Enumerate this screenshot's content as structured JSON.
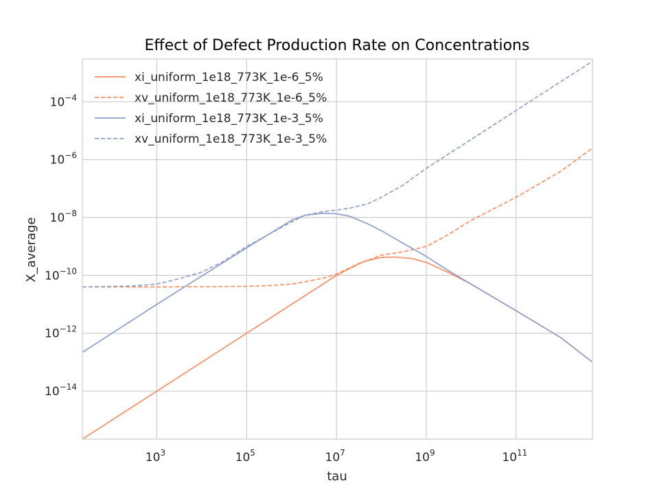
{
  "chart_data": {
    "type": "line",
    "title": "Effect of Defect Production Rate on Concentrations",
    "xlabel": "tau",
    "ylabel": "X_average",
    "x_scale": "log",
    "y_scale": "log",
    "xlim": [
      22,
      5000000000000
    ],
    "ylim": [
      2.2e-16,
      0.003
    ],
    "xticks": [
      {
        "base": "10",
        "exp": "3",
        "value": 1000
      },
      {
        "base": "10",
        "exp": "5",
        "value": 100000
      },
      {
        "base": "10",
        "exp": "7",
        "value": 10000000
      },
      {
        "base": "10",
        "exp": "9",
        "value": 1000000000
      },
      {
        "base": "10",
        "exp": "11",
        "value": 100000000000
      }
    ],
    "yticks": [
      {
        "base": "10",
        "exp": "−14",
        "value": 1e-14
      },
      {
        "base": "10",
        "exp": "−12",
        "value": 1e-12
      },
      {
        "base": "10",
        "exp": "−10",
        "value": 1e-10
      },
      {
        "base": "10",
        "exp": "−8",
        "value": 1e-08
      },
      {
        "base": "10",
        "exp": "−6",
        "value": 1e-06
      },
      {
        "base": "10",
        "exp": "−4",
        "value": 0.0001
      }
    ],
    "grid": true,
    "legend_position": "upper-left",
    "series": [
      {
        "name": "xi_uniform_1e18_773K_1e-6_5%",
        "color": "#fc8d62",
        "dash": "solid",
        "points": [
          [
            22,
            2.2e-16
          ],
          [
            1000,
            1e-14
          ],
          [
            100000,
            1e-12
          ],
          [
            10000000,
            1e-10
          ],
          [
            40000000,
            3e-10
          ],
          [
            100000000,
            4.2e-10
          ],
          [
            200000000,
            4.3e-10
          ],
          [
            500000000,
            3.8e-10
          ],
          [
            1000000000,
            2.8e-10
          ],
          [
            3000000000,
            1.3e-10
          ],
          [
            10000000000,
            5e-11
          ],
          [
            100000000000,
            6e-12
          ],
          [
            1000000000000,
            7e-13
          ],
          [
            5000000000000,
            1e-13
          ]
        ]
      },
      {
        "name": "xv_uniform_1e18_773K_1e-6_5%",
        "color": "#fc8d62",
        "dash": "dashed",
        "points": [
          [
            22,
            4e-11
          ],
          [
            1000,
            4e-11
          ],
          [
            100000,
            4.2e-11
          ],
          [
            300000,
            4.4e-11
          ],
          [
            1000000,
            5e-11
          ],
          [
            2000000,
            6e-11
          ],
          [
            5000000,
            8e-11
          ],
          [
            10000000,
            1.1e-10
          ],
          [
            30000000,
            2.5e-10
          ],
          [
            100000000,
            5e-10
          ],
          [
            300000000,
            6.5e-10
          ],
          [
            1000000000,
            1e-09
          ],
          [
            3000000000,
            2.5e-09
          ],
          [
            10000000000,
            8e-09
          ],
          [
            100000000000,
            5e-08
          ],
          [
            1000000000000,
            4e-07
          ],
          [
            5000000000000,
            2.5e-06
          ]
        ]
      },
      {
        "name": "xi_uniform_1e18_773K_1e-3_5%",
        "color": "#8da0cb",
        "dash": "solid",
        "points": [
          [
            22,
            2.2e-13
          ],
          [
            1000,
            1e-11
          ],
          [
            100000,
            9e-10
          ],
          [
            1000000,
            8e-09
          ],
          [
            2000000,
            1.2e-08
          ],
          [
            5000000,
            1.4e-08
          ],
          [
            10000000,
            1.35e-08
          ],
          [
            20000000,
            1.1e-08
          ],
          [
            50000000,
            6e-09
          ],
          [
            100000000,
            3.5e-09
          ],
          [
            300000000,
            1.3e-09
          ],
          [
            1000000000,
            4.5e-10
          ],
          [
            3000000000,
            1.5e-10
          ],
          [
            10000000000,
            5e-11
          ],
          [
            100000000000,
            6e-12
          ],
          [
            1000000000000,
            7e-13
          ],
          [
            5000000000000,
            1e-13
          ]
        ]
      },
      {
        "name": "xv_uniform_1e18_773K_1e-3_5%",
        "color": "#8da0cb",
        "dash": "dashed",
        "points": [
          [
            22,
            4e-11
          ],
          [
            300,
            4.3e-11
          ],
          [
            1000,
            5e-11
          ],
          [
            3000,
            7.5e-11
          ],
          [
            10000,
            1.3e-10
          ],
          [
            30000,
            3e-10
          ],
          [
            100000,
            1e-09
          ],
          [
            1000000,
            7e-09
          ],
          [
            2000000,
            1.2e-08
          ],
          [
            5000000,
            1.6e-08
          ],
          [
            10000000,
            1.8e-08
          ],
          [
            20000000,
            2.1e-08
          ],
          [
            50000000,
            3e-08
          ],
          [
            100000000,
            5e-08
          ],
          [
            300000000,
            1.3e-07
          ],
          [
            1000000000,
            5e-07
          ],
          [
            10000000000,
            5e-06
          ],
          [
            100000000000,
            5e-05
          ],
          [
            1000000000000,
            0.0005
          ],
          [
            5000000000000,
            0.0025
          ]
        ]
      }
    ]
  }
}
